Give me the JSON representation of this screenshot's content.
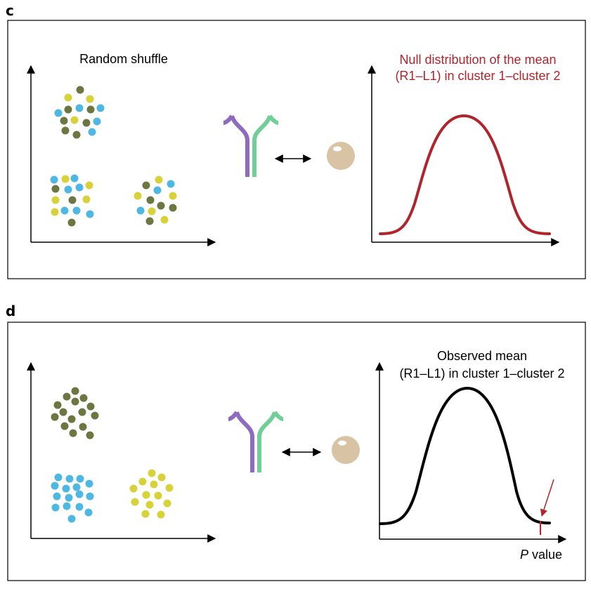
{
  "panel_c": {
    "label": "c",
    "scatter_title": "Random shuffle",
    "curve_title_line1": "Null distribution of the mean",
    "curve_title_line2": "(R1–L1) in cluster 1–cluster 2",
    "curve_color": "#b0242c"
  },
  "panel_d": {
    "label": "d",
    "curve_title_line1": "Observed mean",
    "curve_title_line2": "(R1–L1) in cluster 1–cluster 2",
    "xlabel_italic": "P",
    "xlabel_rest": " value",
    "curve_color": "#000000",
    "marker_color": "#b0242c"
  },
  "colors": {
    "olive": "#6b7640",
    "yellow": "#d8d23a",
    "blue": "#4fb8e2",
    "receptor_left": "#8e6bbe",
    "receptor_right": "#6fcf97",
    "ligand": "#d8c3a5"
  },
  "icons": [
    "receptor-icon",
    "double-arrow-icon",
    "ligand-icon"
  ]
}
